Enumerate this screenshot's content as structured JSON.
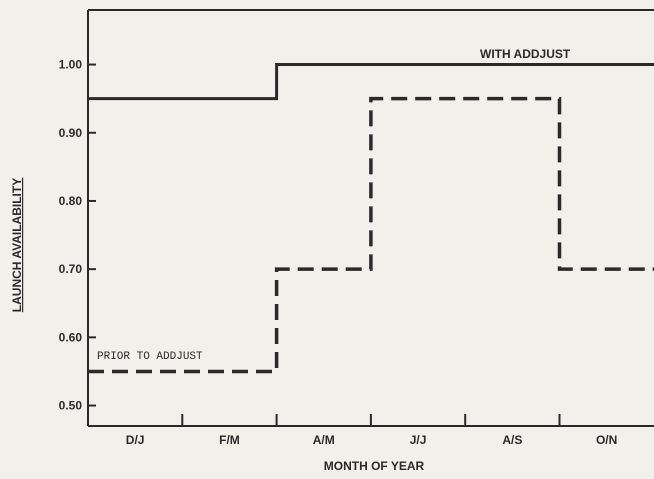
{
  "chart_data": {
    "type": "line",
    "title": "",
    "xlabel": "MONTH OF YEAR",
    "ylabel": "LAUNCH AVAILABILITY",
    "categories": [
      "D/J",
      "F/M",
      "A/M",
      "J/J",
      "A/S",
      "O/N"
    ],
    "yticks": [
      "0.50",
      "0.60",
      "0.70",
      "0.80",
      "0.90",
      "1.00"
    ],
    "ylim": [
      0.47,
      1.08
    ],
    "grid": false,
    "series": [
      {
        "name": "WITH ADDJUST",
        "style": "solid",
        "values": [
          0.95,
          0.95,
          1.0,
          1.0,
          1.0,
          1.0
        ]
      },
      {
        "name": "PRIOR TO ADDJUST",
        "style": "dashed",
        "values": [
          0.55,
          0.55,
          0.7,
          0.95,
          0.95,
          0.7
        ]
      }
    ],
    "colors": {
      "line": "#2a2a2a",
      "background": "#f2f0ea"
    }
  }
}
